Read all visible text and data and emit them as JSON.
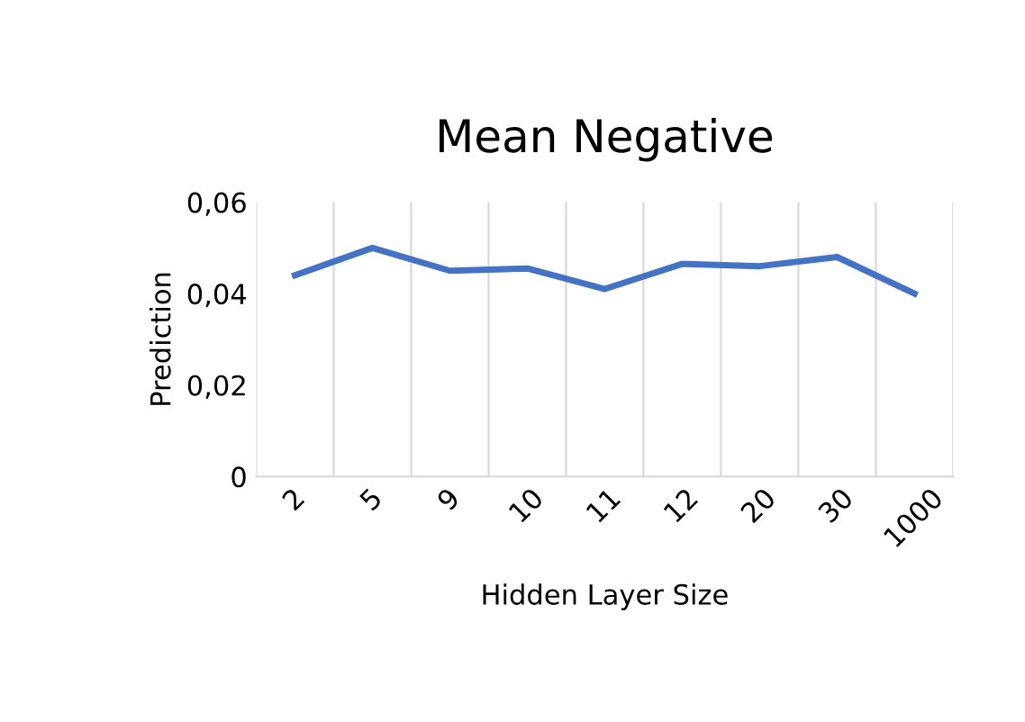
{
  "chart_data": {
    "type": "line",
    "title": "Mean Negative",
    "xlabel": "Hidden Layer Size",
    "ylabel": "Prediction",
    "categories": [
      "2",
      "5",
      "9",
      "10",
      "11",
      "12",
      "20",
      "30",
      "1000"
    ],
    "series": [
      {
        "color": "#4472c4",
        "values": [
          0.044,
          0.05,
          0.045,
          0.0455,
          0.041,
          0.0465,
          0.046,
          0.048,
          0.04
        ]
      }
    ],
    "ylim": [
      0,
      0.06
    ],
    "yticks": [
      {
        "value": 0,
        "label": "0"
      },
      {
        "value": 0.02,
        "label": "0,02"
      },
      {
        "value": 0.04,
        "label": "0,04"
      },
      {
        "value": 0.06,
        "label": "0,06"
      }
    ],
    "grid": "x",
    "legend": false,
    "marker": "none",
    "line_style": "solid"
  }
}
